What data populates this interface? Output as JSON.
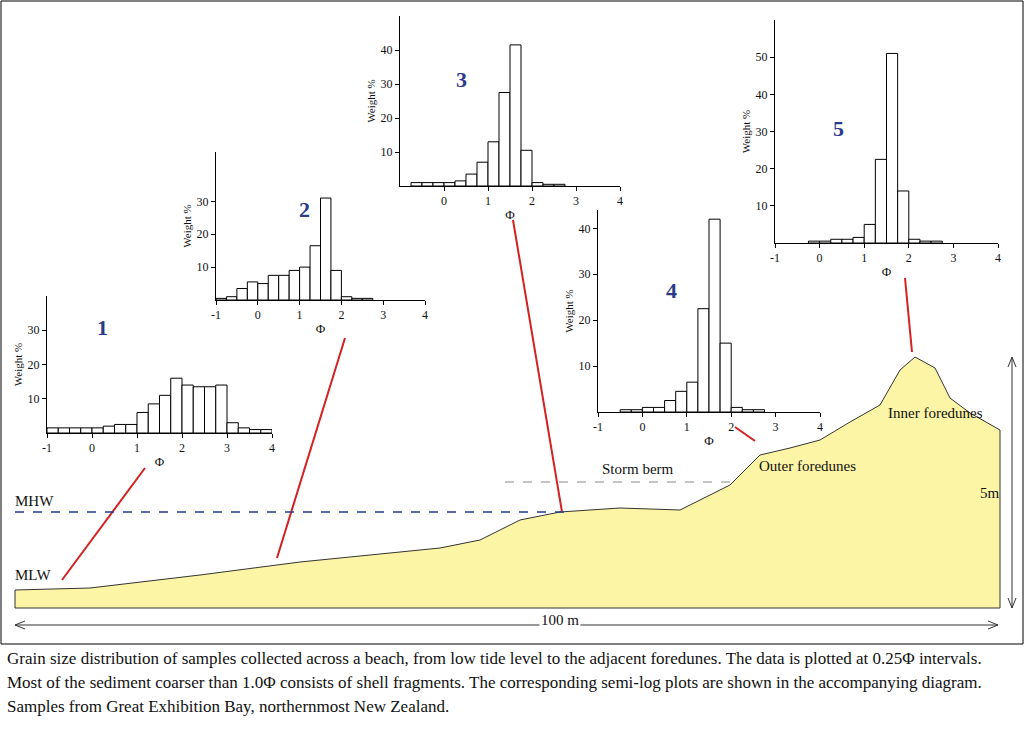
{
  "chart_data": [
    {
      "type": "histogram",
      "title": "1",
      "x_label": "Φ",
      "y_label": "Weight %",
      "color": "#ffffff",
      "bins": [
        -1,
        -0.75,
        -0.5,
        -0.25,
        0,
        0.25,
        0.5,
        0.75,
        1,
        1.25,
        1.5,
        1.75,
        2,
        2.25,
        2.5,
        2.75,
        3,
        3.25,
        3.5,
        3.75,
        4
      ],
      "values": [
        1.5,
        1.5,
        1.5,
        1.5,
        1.5,
        2,
        2.5,
        2.5,
        6,
        8.5,
        11,
        16,
        14,
        13.5,
        13.5,
        14,
        3,
        1.5,
        1,
        1
      ],
      "xlim": [
        -1,
        4
      ],
      "xticks": [
        -1,
        0,
        1,
        2,
        3,
        4
      ],
      "ylim": [
        0,
        40
      ],
      "yticks": [
        10,
        20,
        30
      ],
      "grid": false
    },
    {
      "type": "histogram",
      "title": "2",
      "x_label": "Φ",
      "y_label": "Weight %",
      "color": "#ffffff",
      "bins": [
        -1,
        -0.75,
        -0.5,
        -0.25,
        0,
        0.25,
        0.5,
        0.75,
        1,
        1.25,
        1.5,
        1.75,
        2,
        2.25,
        2.5,
        2.75
      ],
      "values": [
        0.5,
        1,
        3.5,
        5.5,
        5,
        7.5,
        7.5,
        9,
        10,
        16.5,
        31,
        9,
        1,
        0.5,
        0.5
      ],
      "xlim": [
        -1,
        4
      ],
      "xticks": [
        -1,
        0,
        1,
        2,
        3,
        4
      ],
      "ylim": [
        0,
        45
      ],
      "yticks": [
        10,
        20,
        30
      ],
      "grid": false
    },
    {
      "type": "histogram",
      "title": "3",
      "x_label": "Φ",
      "y_label": "Weight %",
      "color": "#ffffff",
      "bins": [
        -0.75,
        -0.5,
        -0.25,
        0,
        0.25,
        0.5,
        0.75,
        1,
        1.25,
        1.5,
        1.75,
        2,
        2.25,
        2.5,
        2.75
      ],
      "values": [
        1,
        1,
        1,
        1,
        1.5,
        3.5,
        7,
        13,
        27.5,
        41.5,
        10.5,
        1,
        0.5,
        0.5
      ],
      "xlim": [
        -1,
        4
      ],
      "xticks": [
        0,
        1,
        2,
        3,
        4
      ],
      "ylim": [
        0,
        50
      ],
      "yticks": [
        10,
        20,
        30,
        40
      ],
      "grid": false
    },
    {
      "type": "histogram",
      "title": "4",
      "x_label": "Φ",
      "y_label": "Weight %",
      "color": "#ffffff",
      "bins": [
        -0.5,
        -0.25,
        0,
        0.25,
        0.5,
        0.75,
        1,
        1.25,
        1.5,
        1.75,
        2,
        2.25,
        2.5,
        2.75
      ],
      "values": [
        0.5,
        0.5,
        1,
        1,
        2.5,
        4.5,
        6.5,
        22.5,
        42,
        15,
        1,
        0.5,
        0.5
      ],
      "xlim": [
        -1,
        4
      ],
      "xticks": [
        -1,
        0,
        1,
        2,
        3,
        4
      ],
      "ylim": [
        0,
        44
      ],
      "yticks": [
        10,
        20,
        30,
        40
      ],
      "grid": false
    },
    {
      "type": "histogram",
      "title": "5",
      "x_label": "Φ",
      "y_label": "Weight %",
      "color": "#ffffff",
      "bins": [
        -0.25,
        0,
        0.25,
        0.5,
        0.75,
        1,
        1.25,
        1.5,
        1.75,
        2,
        2.25,
        2.5,
        2.75
      ],
      "values": [
        0.5,
        0.5,
        1,
        1,
        1.5,
        5,
        22.5,
        51,
        14,
        1,
        0.5,
        0.5
      ],
      "xlim": [
        -1,
        4
      ],
      "xticks": [
        -1,
        0,
        1,
        2,
        3,
        4
      ],
      "ylim": [
        0,
        60
      ],
      "yticks": [
        10,
        20,
        30,
        40,
        50
      ],
      "grid": false
    }
  ],
  "diagram": {
    "water_levels": {
      "high": "MHW",
      "low": "MLW"
    },
    "features": {
      "storm_berm": "Storm berm",
      "outer_foredunes": "Outer foredunes",
      "inner_foredunes": "Inner foredunes"
    },
    "dimensions": {
      "length": "100 m",
      "height": "5m"
    }
  },
  "caption": "Grain size distribution of samples collected across a beach, from low tide level to the adjacent foredunes. The data is plotted at 0.25Φ intervals. Most of the sediment coarser than 1.0Φ consists of shell fragments. The corresponding semi-log plots are shown in the accompanying diagram. Samples from Great Exhibition Bay, northernmost New Zealand."
}
